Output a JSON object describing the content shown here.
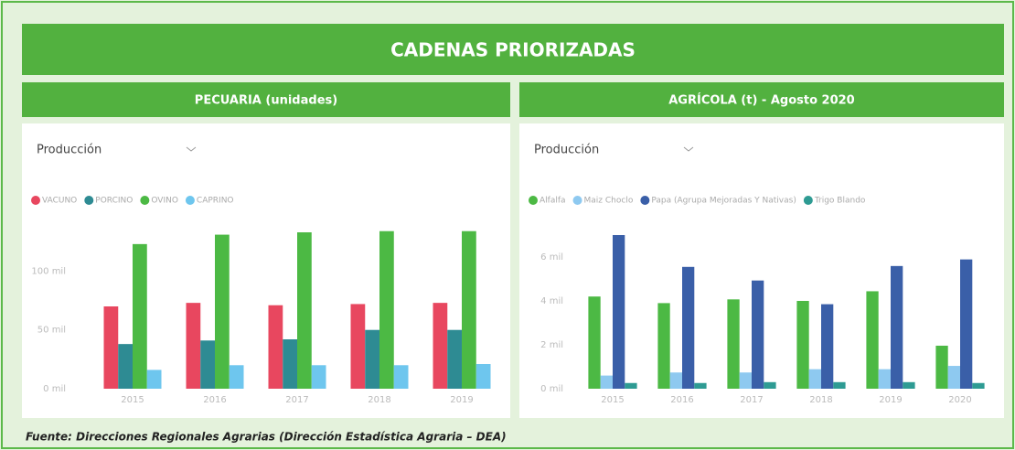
{
  "header": {
    "title": "CADENAS PRIORIZADAS"
  },
  "footer": "Fuente: Direcciones Regionales Agrarias (Dirección Estadística Agraria – DEA)",
  "chart_data": [
    {
      "type": "bar",
      "title": "PECUARIA (unidades)",
      "dropdown": "Producción",
      "categories": [
        "2015",
        "2016",
        "2017",
        "2018",
        "2019"
      ],
      "series": [
        {
          "name": "VACUNO",
          "color": "#e8475f",
          "values": [
            70000,
            73000,
            71000,
            72000,
            73000
          ]
        },
        {
          "name": "PORCINO",
          "color": "#2e8b93",
          "values": [
            38000,
            41000,
            42000,
            50000,
            50000
          ]
        },
        {
          "name": "OVINO",
          "color": "#4cb944",
          "values": [
            123000,
            131000,
            133000,
            134000,
            134000
          ]
        },
        {
          "name": "CAPRINO",
          "color": "#6ec6ee",
          "values": [
            16000,
            20000,
            20000,
            20000,
            21000
          ]
        }
      ],
      "ylim": [
        0,
        140000
      ],
      "yticks": [
        {
          "value": 0,
          "label": "0 mil"
        },
        {
          "value": 50000,
          "label": "50 mil"
        },
        {
          "value": 100000,
          "label": "100 mil"
        }
      ],
      "grid": false,
      "legend": "top-left"
    },
    {
      "type": "bar",
      "title": "AGRÍCOLA (t) - Agosto 2020",
      "dropdown": "Producción",
      "categories": [
        "2015",
        "2016",
        "2017",
        "2018",
        "2019",
        "2020"
      ],
      "series": [
        {
          "name": "Alfalfa",
          "color": "#4cb944",
          "values": [
            4200,
            3900,
            4070,
            4000,
            4440,
            1960
          ]
        },
        {
          "name": "Maiz Choclo",
          "color": "#8ec9f0",
          "values": [
            600,
            740,
            740,
            890,
            890,
            1040
          ]
        },
        {
          "name": "Papa (Agrupa Mejoradas Y Nativas)",
          "color": "#3a5fa8",
          "values": [
            7000,
            5550,
            4930,
            3850,
            5590,
            5890
          ]
        },
        {
          "name": "Trigo Blando",
          "color": "#2e9b93",
          "values": [
            260,
            260,
            300,
            300,
            300,
            260
          ]
        }
      ],
      "ylim": [
        0,
        7500
      ],
      "yticks": [
        {
          "value": 0,
          "label": "0 mil"
        },
        {
          "value": 2000,
          "label": "2 mil"
        },
        {
          "value": 4000,
          "label": "4 mil"
        },
        {
          "value": 6000,
          "label": "6 mil"
        }
      ],
      "grid": false,
      "legend": "top-left"
    }
  ]
}
